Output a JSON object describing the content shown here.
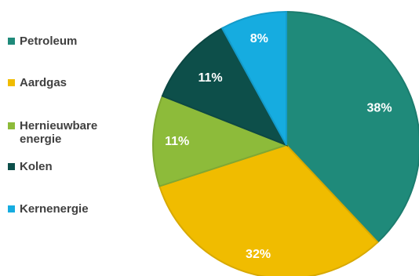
{
  "chart_data": {
    "type": "pie",
    "categories": [
      "Petroleum",
      "Aardgas",
      "Hernieuwbare energie",
      "Kolen",
      "Kernenergie"
    ],
    "values": [
      38,
      32,
      11,
      11,
      8
    ],
    "data_labels": [
      "38%",
      "32%",
      "11%",
      "11%",
      "8%"
    ],
    "colors": [
      "#1f8a7a",
      "#f0bc00",
      "#8dbb3a",
      "#0d4f4a",
      "#16ace0"
    ],
    "legend_position": "left",
    "start_angle": "top, clockwise"
  }
}
